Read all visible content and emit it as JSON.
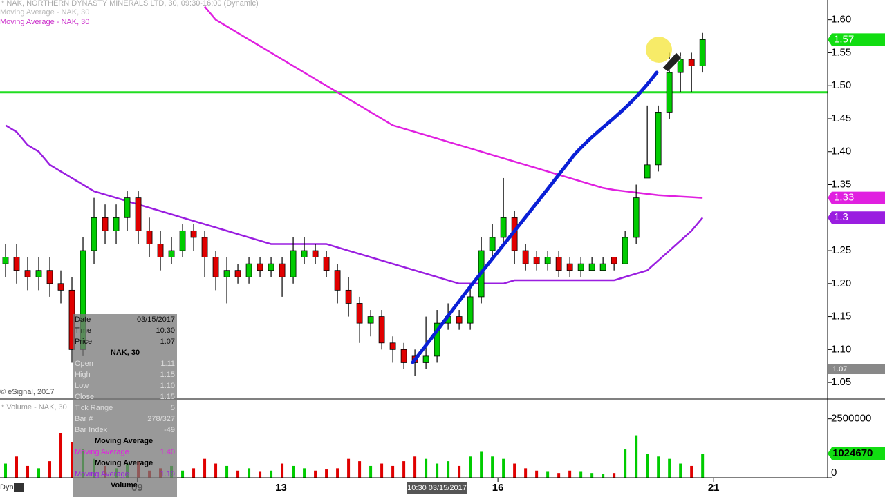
{
  "header": {
    "title": "* NAK, NORTHERN DYNASTY MINERALS LTD, 30, 09:30-16:00 (Dynamic)",
    "ma1": "Moving Average - NAK, 30",
    "ma2": "Moving Average - NAK, 30",
    "copyright": "© eSignal, 2017",
    "volume_title": "* Volume - NAK, 30",
    "mode": "Dyn"
  },
  "chart_data": {
    "type": "candlestick",
    "xlim": [
      -0.5,
      74.3
    ],
    "xticks": [
      {
        "value": 11.9,
        "label": "09"
      },
      {
        "value": 24.9,
        "label": "13"
      },
      {
        "value": 44.5,
        "label": "16"
      },
      {
        "value": 64,
        "label": "21"
      }
    ],
    "ylim": [
      1.025,
      1.63
    ],
    "yticks": [
      1.05,
      {
        "value": 1.1,
        "label": "1.10"
      },
      1.15,
      {
        "value": 1.2,
        "label": "1.20"
      },
      1.25,
      {
        "value": 1.3,
        "label": "1.30"
      },
      1.35,
      {
        "value": 1.4,
        "label": "1.40"
      },
      1.45,
      {
        "value": 1.5,
        "label": "1.50"
      },
      1.55,
      {
        "value": 1.6,
        "label": "1.60"
      }
    ],
    "up_color": "#00cc00",
    "down_color": "#e00000",
    "ohlc": [
      [
        1.23,
        1.26,
        1.21,
        1.24
      ],
      [
        1.24,
        1.26,
        1.2,
        1.22
      ],
      [
        1.22,
        1.24,
        1.19,
        1.21
      ],
      [
        1.21,
        1.24,
        1.19,
        1.22
      ],
      [
        1.22,
        1.24,
        1.18,
        1.2
      ],
      [
        1.2,
        1.22,
        1.17,
        1.19
      ],
      [
        1.19,
        1.21,
        1.08,
        1.1
      ],
      [
        1.1,
        1.27,
        1.09,
        1.25
      ],
      [
        1.25,
        1.33,
        1.23,
        1.3
      ],
      [
        1.3,
        1.32,
        1.26,
        1.28
      ],
      [
        1.28,
        1.32,
        1.26,
        1.3
      ],
      [
        1.3,
        1.34,
        1.28,
        1.33
      ],
      [
        1.33,
        1.34,
        1.26,
        1.28
      ],
      [
        1.28,
        1.3,
        1.24,
        1.26
      ],
      [
        1.26,
        1.28,
        1.22,
        1.24
      ],
      [
        1.24,
        1.27,
        1.23,
        1.25
      ],
      [
        1.25,
        1.29,
        1.24,
        1.28
      ],
      [
        1.28,
        1.29,
        1.25,
        1.27
      ],
      [
        1.27,
        1.28,
        1.21,
        1.24
      ],
      [
        1.24,
        1.25,
        1.19,
        1.21
      ],
      [
        1.21,
        1.24,
        1.17,
        1.22
      ],
      [
        1.22,
        1.23,
        1.2,
        1.21
      ],
      [
        1.21,
        1.24,
        1.2,
        1.23
      ],
      [
        1.23,
        1.24,
        1.21,
        1.22
      ],
      [
        1.22,
        1.24,
        1.21,
        1.23
      ],
      [
        1.23,
        1.24,
        1.18,
        1.21
      ],
      [
        1.21,
        1.27,
        1.2,
        1.25
      ],
      [
        1.24,
        1.27,
        1.23,
        1.25
      ],
      [
        1.25,
        1.26,
        1.23,
        1.24
      ],
      [
        1.24,
        1.25,
        1.21,
        1.22
      ],
      [
        1.22,
        1.23,
        1.17,
        1.19
      ],
      [
        1.19,
        1.21,
        1.15,
        1.17
      ],
      [
        1.17,
        1.18,
        1.11,
        1.14
      ],
      [
        1.14,
        1.16,
        1.12,
        1.15
      ],
      [
        1.15,
        1.16,
        1.1,
        1.11
      ],
      [
        1.11,
        1.12,
        1.08,
        1.1
      ],
      [
        1.1,
        1.11,
        1.07,
        1.08
      ],
      [
        1.09,
        1.1,
        1.06,
        1.08
      ],
      [
        1.08,
        1.15,
        1.07,
        1.09
      ],
      [
        1.09,
        1.16,
        1.08,
        1.14
      ],
      [
        1.14,
        1.17,
        1.13,
        1.15
      ],
      [
        1.15,
        1.16,
        1.13,
        1.14
      ],
      [
        1.14,
        1.2,
        1.13,
        1.18
      ],
      [
        1.18,
        1.27,
        1.17,
        1.25
      ],
      [
        1.25,
        1.29,
        1.24,
        1.27
      ],
      [
        1.27,
        1.36,
        1.26,
        1.3
      ],
      [
        1.3,
        1.31,
        1.23,
        1.25
      ],
      [
        1.25,
        1.26,
        1.22,
        1.23
      ],
      [
        1.24,
        1.25,
        1.22,
        1.23
      ],
      [
        1.23,
        1.25,
        1.22,
        1.24
      ],
      [
        1.24,
        1.25,
        1.21,
        1.22
      ],
      [
        1.23,
        1.24,
        1.21,
        1.22
      ],
      [
        1.22,
        1.24,
        1.21,
        1.23
      ],
      [
        1.22,
        1.24,
        1.22,
        1.23
      ],
      [
        1.22,
        1.24,
        1.22,
        1.23
      ],
      [
        1.24,
        1.24,
        1.22,
        1.23
      ],
      [
        1.23,
        1.28,
        1.23,
        1.27
      ],
      [
        1.27,
        1.35,
        1.26,
        1.33
      ],
      [
        1.36,
        1.47,
        1.36,
        1.38
      ],
      [
        1.38,
        1.47,
        1.37,
        1.46
      ],
      [
        1.46,
        1.55,
        1.45,
        1.52
      ],
      [
        1.52,
        1.55,
        1.49,
        1.54
      ],
      [
        1.54,
        1.55,
        1.49,
        1.53
      ],
      [
        1.53,
        1.58,
        1.52,
        1.57
      ]
    ],
    "moving_averages": [
      {
        "color": "#e020e0",
        "values": [
          null,
          null,
          null,
          null,
          null,
          null,
          null,
          null,
          null,
          null,
          null,
          null,
          null,
          null,
          null,
          null,
          null,
          null,
          1.62,
          1.6,
          1.59,
          1.58,
          1.57,
          1.56,
          1.55,
          1.54,
          1.53,
          1.52,
          1.51,
          1.5,
          1.49,
          1.48,
          1.47,
          1.46,
          1.45,
          1.44,
          1.435,
          1.43,
          1.425,
          1.42,
          1.415,
          1.41,
          1.405,
          1.4,
          1.395,
          1.39,
          1.385,
          1.38,
          1.375,
          1.37,
          1.365,
          1.36,
          1.355,
          1.35,
          1.345,
          1.342,
          1.34,
          1.338,
          1.336,
          1.334,
          1.333,
          1.332,
          1.331,
          1.33
        ]
      },
      {
        "color": "#9a1ee0",
        "values": [
          1.44,
          1.43,
          1.41,
          1.4,
          1.38,
          1.37,
          1.36,
          1.35,
          1.34,
          1.335,
          1.33,
          1.325,
          1.32,
          1.315,
          1.31,
          1.305,
          1.3,
          1.295,
          1.29,
          1.285,
          1.28,
          1.275,
          1.27,
          1.265,
          1.26,
          1.26,
          1.26,
          1.26,
          1.26,
          1.26,
          1.255,
          1.25,
          1.245,
          1.24,
          1.235,
          1.23,
          1.225,
          1.22,
          1.215,
          1.21,
          1.205,
          1.2,
          1.2,
          1.2,
          1.2,
          1.2,
          1.205,
          1.205,
          1.205,
          1.205,
          1.205,
          1.205,
          1.205,
          1.205,
          1.205,
          1.205,
          1.21,
          1.215,
          1.22,
          1.235,
          1.25,
          1.265,
          1.28,
          1.3
        ]
      }
    ],
    "level": 1.49,
    "level_color": "#22dd22",
    "crosshair_price": 1.07,
    "crosshair_time": "10:30 03/15/2017",
    "volume": [
      600000,
      900000,
      500000,
      400000,
      700000,
      1900000,
      1500000,
      1200000,
      800000,
      500000,
      400000,
      600000,
      700000,
      300000,
      400000,
      500000,
      300000,
      400000,
      800000,
      600000,
      500000,
      300000,
      400000,
      250000,
      300000,
      600000,
      500000,
      400000,
      300000,
      350000,
      400000,
      800000,
      700000,
      500000,
      600000,
      500000,
      700000,
      900000,
      800000,
      600000,
      700000,
      500000,
      900000,
      1100000,
      900000,
      800000,
      600000,
      400000,
      300000,
      250000,
      200000,
      300000,
      250000,
      200000,
      150000,
      200000,
      1200000,
      1800000,
      1000000,
      900000,
      800000,
      600000,
      500000,
      1024670
    ],
    "volume_ylim": [
      0,
      3281250
    ],
    "volume_ticks": [
      0,
      2500000
    ]
  },
  "info_panel": {
    "rows": [
      [
        "Date",
        "03/15/2017"
      ],
      [
        "Time",
        "10:30"
      ],
      [
        "Price",
        "1.07"
      ]
    ],
    "symbol": "NAK, 30",
    "rows2": [
      [
        "Open",
        "1.11"
      ],
      [
        "High",
        "1.15"
      ],
      [
        "Low",
        "1.10"
      ],
      [
        "Close",
        "1.15"
      ],
      [
        "Tick Range",
        "5"
      ],
      [
        "Bar #",
        "278/327"
      ],
      [
        "Bar Index",
        "-49"
      ]
    ],
    "ma_heading": "Moving Average",
    "ma_row": [
      "Moving Average",
      "1.40"
    ],
    "ma_heading2": "Moving Average",
    "ma_row2": [
      "Moving Average",
      "1.19"
    ],
    "volume": "Volume"
  }
}
